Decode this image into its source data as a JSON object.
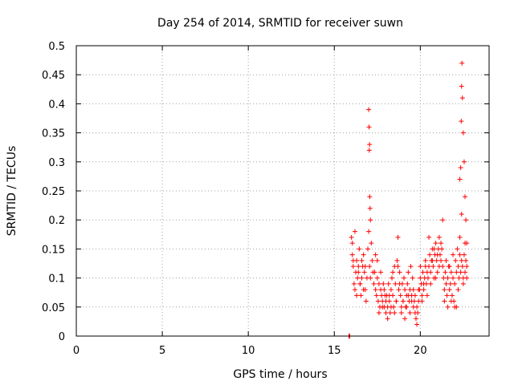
{
  "chart_data": {
    "type": "scatter",
    "title": "Day 254 of 2014, SRMTID for receiver suwn",
    "xlabel": "GPS time / hours",
    "ylabel": "SRMTID / TECUs",
    "xlim": [
      0,
      24
    ],
    "ylim": [
      0,
      0.5
    ],
    "grid": true,
    "marker": "+",
    "color": "#ff0000",
    "x_ticks": [
      0,
      5,
      10,
      15,
      20
    ],
    "x_tick_labels": [
      "0",
      "5",
      "10",
      "15",
      "20"
    ],
    "y_ticks": [
      0,
      0.05,
      0.1,
      0.15,
      0.2,
      0.25,
      0.3,
      0.35,
      0.4,
      0.45,
      0.5
    ],
    "y_tick_labels": [
      "0",
      "0.05",
      "0.1",
      "0.15",
      "0.2",
      "0.25",
      "0.3",
      "0.35",
      "0.4",
      "0.45",
      "0.5"
    ],
    "series": [
      {
        "name": "SRMTID",
        "x": [
          15.85,
          15.87,
          15.9,
          16.0,
          16.05,
          16.1,
          16.15,
          16.2,
          16.25,
          16.3,
          16.35,
          16.4,
          16.45,
          16.5,
          16.55,
          16.6,
          16.65,
          16.7,
          16.75,
          16.8,
          16.85,
          16.9,
          16.05,
          16.1,
          16.2,
          16.3,
          16.4,
          16.5,
          16.6,
          16.7,
          16.8,
          16.95,
          17.0,
          17.05,
          17.1,
          17.15,
          17.2,
          17.25,
          17.3,
          17.0,
          17.02,
          17.05,
          17.03,
          17.06,
          17.08,
          17.1,
          17.35,
          17.4,
          17.45,
          17.5,
          17.55,
          17.6,
          17.65,
          17.7,
          17.75,
          17.8,
          17.85,
          17.9,
          17.95,
          18.0,
          17.4,
          17.5,
          17.6,
          17.7,
          17.8,
          17.9,
          18.0,
          18.05,
          18.1,
          18.15,
          18.2,
          18.25,
          18.3,
          18.35,
          18.4,
          18.45,
          18.5,
          18.55,
          18.6,
          18.65,
          18.7,
          18.75,
          18.8,
          18.1,
          18.2,
          18.3,
          18.4,
          18.5,
          18.6,
          18.7,
          18.8,
          18.85,
          18.9,
          18.95,
          19.0,
          19.05,
          19.1,
          19.15,
          19.2,
          19.25,
          19.3,
          19.35,
          19.4,
          19.45,
          19.5,
          19.55,
          19.6,
          18.9,
          19.0,
          19.1,
          19.2,
          19.3,
          19.4,
          19.5,
          19.6,
          19.65,
          19.7,
          19.75,
          19.8,
          19.85,
          19.9,
          19.95,
          20.0,
          20.05,
          20.1,
          20.15,
          20.2,
          20.25,
          20.3,
          20.35,
          20.4,
          19.7,
          19.8,
          19.9,
          20.0,
          20.1,
          20.2,
          20.3,
          20.4,
          20.45,
          20.5,
          20.55,
          20.6,
          20.65,
          20.7,
          20.75,
          20.8,
          20.85,
          20.9,
          20.95,
          21.0,
          21.05,
          21.1,
          21.15,
          21.2,
          20.5,
          20.6,
          20.7,
          20.8,
          20.9,
          21.0,
          21.1,
          21.2,
          21.25,
          21.3,
          21.35,
          21.4,
          21.45,
          21.5,
          21.55,
          21.6,
          21.65,
          21.7,
          21.75,
          21.8,
          21.85,
          21.9,
          21.95,
          22.0,
          21.3,
          21.4,
          21.5,
          21.6,
          21.7,
          21.8,
          21.9,
          22.0,
          22.05,
          22.1,
          22.15,
          22.2,
          22.25,
          22.3,
          22.35,
          22.4,
          22.45,
          22.5,
          22.55,
          22.6,
          22.65,
          22.7,
          22.1,
          22.2,
          22.3,
          22.4,
          22.5,
          22.6,
          22.7,
          22.3,
          22.35,
          22.38,
          22.4,
          22.42,
          22.45,
          22.5,
          22.55,
          22.6,
          22.65,
          22.7
        ],
        "y": [
          0.0,
          0.0,
          0.0,
          0.17,
          0.14,
          0.12,
          0.09,
          0.08,
          0.11,
          0.13,
          0.1,
          0.12,
          0.15,
          0.09,
          0.07,
          0.1,
          0.12,
          0.14,
          0.11,
          0.08,
          0.06,
          0.1,
          0.16,
          0.13,
          0.18,
          0.07,
          0.11,
          0.09,
          0.13,
          0.08,
          0.12,
          0.15,
          0.18,
          0.12,
          0.1,
          0.16,
          0.13,
          0.11,
          0.09,
          0.39,
          0.36,
          0.33,
          0.32,
          0.24,
          0.22,
          0.2,
          0.11,
          0.08,
          0.07,
          0.1,
          0.06,
          0.09,
          0.05,
          0.08,
          0.07,
          0.06,
          0.09,
          0.05,
          0.07,
          0.06,
          0.14,
          0.13,
          0.04,
          0.11,
          0.05,
          0.08,
          0.04,
          0.07,
          0.05,
          0.09,
          0.06,
          0.04,
          0.08,
          0.1,
          0.07,
          0.05,
          0.12,
          0.09,
          0.06,
          0.13,
          0.17,
          0.08,
          0.11,
          0.03,
          0.07,
          0.05,
          0.11,
          0.04,
          0.06,
          0.12,
          0.09,
          0.07,
          0.05,
          0.09,
          0.06,
          0.1,
          0.08,
          0.05,
          0.07,
          0.09,
          0.11,
          0.06,
          0.08,
          0.12,
          0.07,
          0.1,
          0.08,
          0.04,
          0.06,
          0.03,
          0.05,
          0.07,
          0.04,
          0.06,
          0.05,
          0.06,
          0.04,
          0.03,
          0.02,
          0.04,
          0.06,
          0.08,
          0.1,
          0.09,
          0.07,
          0.11,
          0.08,
          0.1,
          0.12,
          0.09,
          0.11,
          0.07,
          0.05,
          0.08,
          0.12,
          0.06,
          0.09,
          0.13,
          0.07,
          0.1,
          0.12,
          0.14,
          0.11,
          0.13,
          0.15,
          0.12,
          0.1,
          0.14,
          0.16,
          0.13,
          0.11,
          0.15,
          0.12,
          0.14,
          0.16,
          0.17,
          0.09,
          0.13,
          0.15,
          0.1,
          0.14,
          0.17,
          0.13,
          0.15,
          0.12,
          0.1,
          0.08,
          0.11,
          0.09,
          0.07,
          0.1,
          0.12,
          0.08,
          0.09,
          0.11,
          0.07,
          0.1,
          0.06,
          0.09,
          0.2,
          0.06,
          0.13,
          0.05,
          0.12,
          0.06,
          0.14,
          0.05,
          0.13,
          0.11,
          0.15,
          0.12,
          0.1,
          0.14,
          0.11,
          0.13,
          0.12,
          0.1,
          0.14,
          0.11,
          0.13,
          0.12,
          0.05,
          0.08,
          0.17,
          0.21,
          0.09,
          0.16,
          0.1,
          0.27,
          0.29,
          0.37,
          0.43,
          0.47,
          0.41,
          0.35,
          0.3,
          0.24,
          0.2,
          0.16
        ]
      }
    ]
  }
}
